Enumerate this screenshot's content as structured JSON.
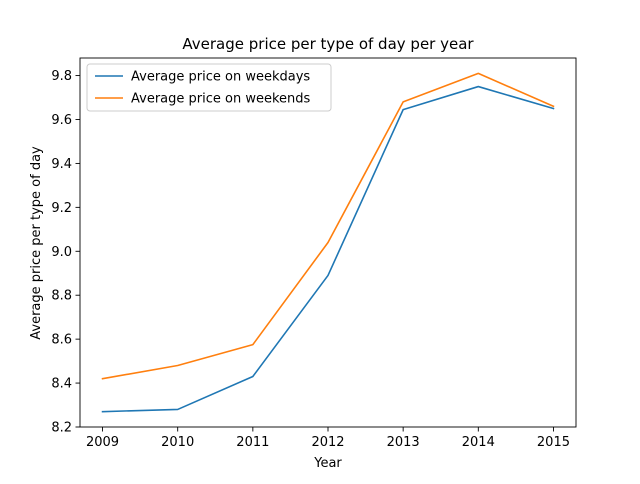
{
  "chart_data": {
    "type": "line",
    "title": "Average price per type of day per year",
    "xlabel": "Year",
    "ylabel": "Average price per type of day",
    "categories": [
      "2009",
      "2010",
      "2011",
      "2012",
      "2013",
      "2014",
      "2015"
    ],
    "x": [
      2009,
      2010,
      2011,
      2012,
      2013,
      2014,
      2015
    ],
    "ylim": [
      8.2,
      9.88
    ],
    "yticks": [
      8.2,
      8.4,
      8.6,
      8.8,
      9.0,
      9.2,
      9.4,
      9.6,
      9.8
    ],
    "ytick_labels": [
      "8.2",
      "8.4",
      "8.6",
      "8.8",
      "9.0",
      "9.2",
      "9.4",
      "9.6",
      "9.8"
    ],
    "grid": false,
    "legend_position": "top-left",
    "series": [
      {
        "name": "Average price on weekdays",
        "color": "#1f77b4",
        "values": [
          8.27,
          8.28,
          8.43,
          8.89,
          9.645,
          9.75,
          9.65
        ]
      },
      {
        "name": "Average price on weekends",
        "color": "#ff7f0e",
        "values": [
          8.42,
          8.48,
          8.575,
          9.04,
          9.68,
          9.81,
          9.66
        ]
      }
    ]
  }
}
